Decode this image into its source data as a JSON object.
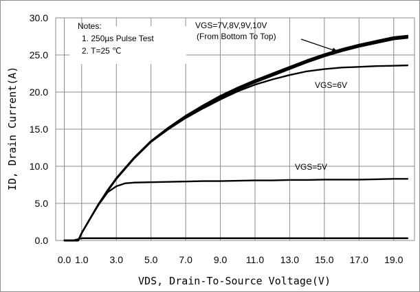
{
  "chart_data": {
    "type": "line",
    "xlabel": "VDS,  Drain-To-Source Voltage(V)",
    "ylabel": "ID,  Drain Current(A)",
    "xlim": [
      -0.5,
      20.2
    ],
    "ylim": [
      0,
      30
    ],
    "x_ticks": [
      0.0,
      1.0,
      3.0,
      5.0,
      7.0,
      9.0,
      11.0,
      13.0,
      15.0,
      17.0,
      19.0
    ],
    "x_tick_labels": [
      "0.0",
      "1.0",
      "3.0",
      "5.0",
      "7.0",
      "9.0",
      "11.0",
      "13.0",
      "15.0",
      "17.0",
      "19.0"
    ],
    "y_ticks": [
      0,
      5,
      10,
      15,
      20,
      25,
      30
    ],
    "y_tick_labels": [
      "0.0",
      "5.0",
      "10.0",
      "15.0",
      "20.0",
      "25.0",
      "30.0"
    ],
    "grid": true,
    "legend": "none",
    "line_color": "#000000",
    "series": [
      {
        "x": [
          0.0,
          0.5,
          1.0,
          1.5,
          2.0,
          3.0,
          4.0,
          5.0,
          6.0,
          7.0,
          8.0,
          9.0,
          10.0,
          11.0,
          12.0,
          13.0,
          14.0,
          15.0,
          16.0,
          17.0,
          18.0,
          19.0,
          19.8
        ],
        "y": [
          0.0,
          0.0,
          0.3,
          0.3,
          0.3,
          0.3,
          0.3,
          0.3,
          0.3,
          0.3,
          0.3,
          0.3,
          0.3,
          0.3,
          0.3,
          0.3,
          0.3,
          0.3,
          0.3,
          0.3,
          0.3,
          0.3,
          0.3
        ]
      },
      {
        "name": "VGS=5V",
        "x": [
          0.0,
          0.5,
          0.8,
          1.0,
          1.5,
          2.0,
          2.5,
          3.0,
          3.5,
          4.0,
          5.0,
          6.0,
          7.0,
          8.0,
          9.0,
          10.0,
          11.0,
          12.0,
          13.0,
          14.0,
          15.0,
          16.0,
          17.0,
          18.0,
          19.0,
          19.8
        ],
        "y": [
          0.0,
          0.0,
          0.0,
          1.0,
          3.0,
          4.9,
          6.5,
          7.3,
          7.7,
          7.8,
          7.85,
          7.9,
          7.95,
          8.0,
          8.0,
          8.05,
          8.1,
          8.1,
          8.15,
          8.15,
          8.2,
          8.2,
          8.2,
          8.25,
          8.3,
          8.3
        ]
      },
      {
        "name": "VGS=6V",
        "x": [
          0.0,
          0.5,
          0.8,
          1.0,
          1.5,
          2.0,
          2.5,
          3.0,
          4.0,
          5.0,
          6.0,
          7.0,
          8.0,
          9.0,
          10.0,
          11.0,
          12.0,
          13.0,
          14.0,
          15.0,
          16.0,
          17.0,
          18.0,
          19.0,
          19.8
        ],
        "y": [
          0.0,
          0.0,
          0.0,
          1.0,
          3.0,
          5.0,
          6.7,
          8.3,
          11.0,
          13.3,
          15.0,
          16.5,
          17.8,
          19.0,
          20.1,
          21.0,
          21.7,
          22.3,
          22.8,
          23.1,
          23.3,
          23.4,
          23.5,
          23.55,
          23.6
        ]
      },
      {
        "name": "VGS=7V",
        "x": [
          0.0,
          0.5,
          0.8,
          1.0,
          1.5,
          2.0,
          2.5,
          3.0,
          4.0,
          5.0,
          6.0,
          7.0,
          8.0,
          9.0,
          10.0,
          11.0,
          12.0,
          13.0,
          14.0,
          15.0,
          16.0,
          17.0,
          18.0,
          19.0,
          19.8
        ],
        "y": [
          0.0,
          0.0,
          0.0,
          1.0,
          3.0,
          5.0,
          6.7,
          8.3,
          11.0,
          13.3,
          15.0,
          16.6,
          17.9,
          19.2,
          20.3,
          21.3,
          22.2,
          23.1,
          24.0,
          24.8,
          25.5,
          26.1,
          26.6,
          27.1,
          27.3
        ]
      },
      {
        "name": "8V",
        "x": [
          0.0,
          0.5,
          0.8,
          1.0,
          1.5,
          2.0,
          2.5,
          3.0,
          4.0,
          5.0,
          6.0,
          7.0,
          8.0,
          9.0,
          10.0,
          11.0,
          12.0,
          13.0,
          14.0,
          15.0,
          16.0,
          17.0,
          18.0,
          19.0,
          19.8
        ],
        "y": [
          0.0,
          0.0,
          0.0,
          1.0,
          3.0,
          5.0,
          6.7,
          8.3,
          11.0,
          13.3,
          15.1,
          16.7,
          18.0,
          19.3,
          20.4,
          21.4,
          22.3,
          23.2,
          24.1,
          24.9,
          25.6,
          26.2,
          26.7,
          27.2,
          27.4
        ]
      },
      {
        "name": "9V",
        "x": [
          0.0,
          0.5,
          0.8,
          1.0,
          1.5,
          2.0,
          2.5,
          3.0,
          4.0,
          5.0,
          6.0,
          7.0,
          8.0,
          9.0,
          10.0,
          11.0,
          12.0,
          13.0,
          14.0,
          15.0,
          16.0,
          17.0,
          18.0,
          19.0,
          19.8
        ],
        "y": [
          0.0,
          0.0,
          0.0,
          1.0,
          3.0,
          5.0,
          6.7,
          8.4,
          11.1,
          13.4,
          15.2,
          16.8,
          18.1,
          19.4,
          20.5,
          21.5,
          22.4,
          23.3,
          24.2,
          25.0,
          25.7,
          26.3,
          26.8,
          27.3,
          27.5
        ]
      },
      {
        "name": "10V",
        "x": [
          0.0,
          0.5,
          0.8,
          1.0,
          1.5,
          2.0,
          2.5,
          3.0,
          4.0,
          5.0,
          6.0,
          7.0,
          8.0,
          9.0,
          10.0,
          11.0,
          12.0,
          13.0,
          14.0,
          15.0,
          16.0,
          17.0,
          18.0,
          19.0,
          19.8
        ],
        "y": [
          0.0,
          0.0,
          0.0,
          1.0,
          3.0,
          5.0,
          6.8,
          8.4,
          11.1,
          13.4,
          15.2,
          16.8,
          18.2,
          19.5,
          20.6,
          21.6,
          22.5,
          23.4,
          24.3,
          25.1,
          25.8,
          26.4,
          26.9,
          27.4,
          27.6
        ]
      }
    ],
    "annotations": {
      "notes_title": "Notes:",
      "note_1": "1. 250µs  Pulse Test",
      "note_2": "2. T=25 ℃",
      "label_high_line1": "VGS=7V,8V,9V,10V",
      "label_high_line2": "(From Bottom To Top)",
      "label_6v": "VGS=6V",
      "label_5v": "VGS=5V"
    }
  }
}
